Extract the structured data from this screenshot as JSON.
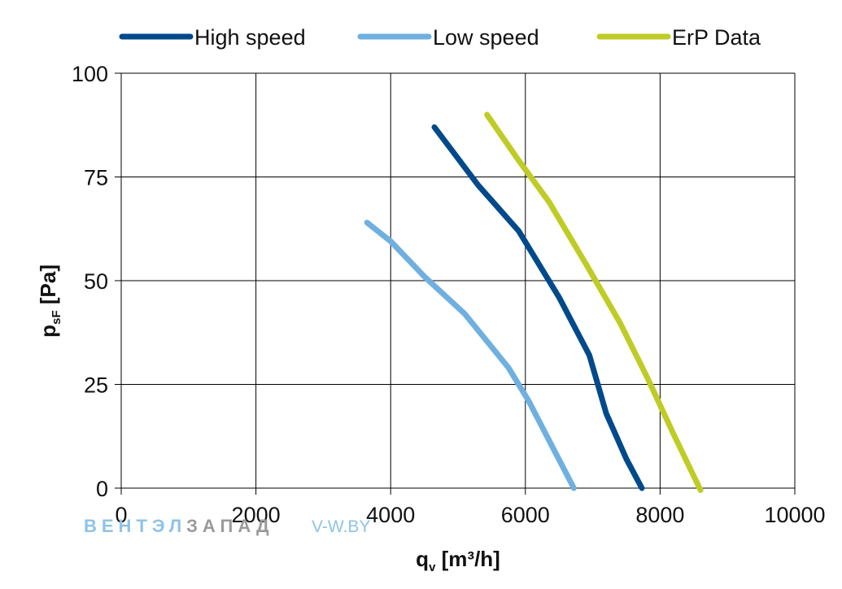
{
  "chart_data": {
    "type": "line",
    "title": "",
    "xlabel": "q",
    "xlabel_sub": "v",
    "xlabel_unit": " [m³/h]",
    "ylabel": "p",
    "ylabel_sub": "sF",
    "ylabel_unit": " [Pa]",
    "xlim": [
      0,
      10000
    ],
    "ylim": [
      0,
      100
    ],
    "x_ticks": [
      "0",
      "2000",
      "4000",
      "6000",
      "8000",
      "10000"
    ],
    "y_ticks": [
      "0",
      "25",
      "50",
      "75",
      "100"
    ],
    "grid": true,
    "legend_position": "top",
    "series": [
      {
        "name": "High speed",
        "color": "#004a8c",
        "points": [
          [
            4650,
            87
          ],
          [
            5300,
            73
          ],
          [
            5900,
            62
          ],
          [
            6500,
            46
          ],
          [
            6950,
            32
          ],
          [
            7200,
            18
          ],
          [
            7500,
            7
          ],
          [
            7730,
            0
          ]
        ]
      },
      {
        "name": "Low speed",
        "color": "#6fb0e0",
        "points": [
          [
            3650,
            64
          ],
          [
            4000,
            59.5
          ],
          [
            4500,
            51
          ],
          [
            5100,
            42
          ],
          [
            5750,
            29
          ],
          [
            6050,
            21
          ],
          [
            6400,
            10
          ],
          [
            6720,
            0
          ]
        ]
      },
      {
        "name": "ErP Data",
        "color": "#bfcc26",
        "points": [
          [
            5430,
            90
          ],
          [
            5900,
            79
          ],
          [
            6350,
            69
          ],
          [
            6900,
            54
          ],
          [
            7400,
            40
          ],
          [
            7800,
            27
          ],
          [
            8200,
            13
          ],
          [
            8600,
            -0.5
          ]
        ]
      }
    ]
  },
  "watermark": {
    "part1": "ВЕНТЭЛ",
    "part2": "ЗАПАД",
    "part3": "V-W.BY"
  },
  "colors": {
    "grid": "#000000",
    "watermark_blue": "#8fc3e6",
    "watermark_grey": "#9a9a9a"
  }
}
